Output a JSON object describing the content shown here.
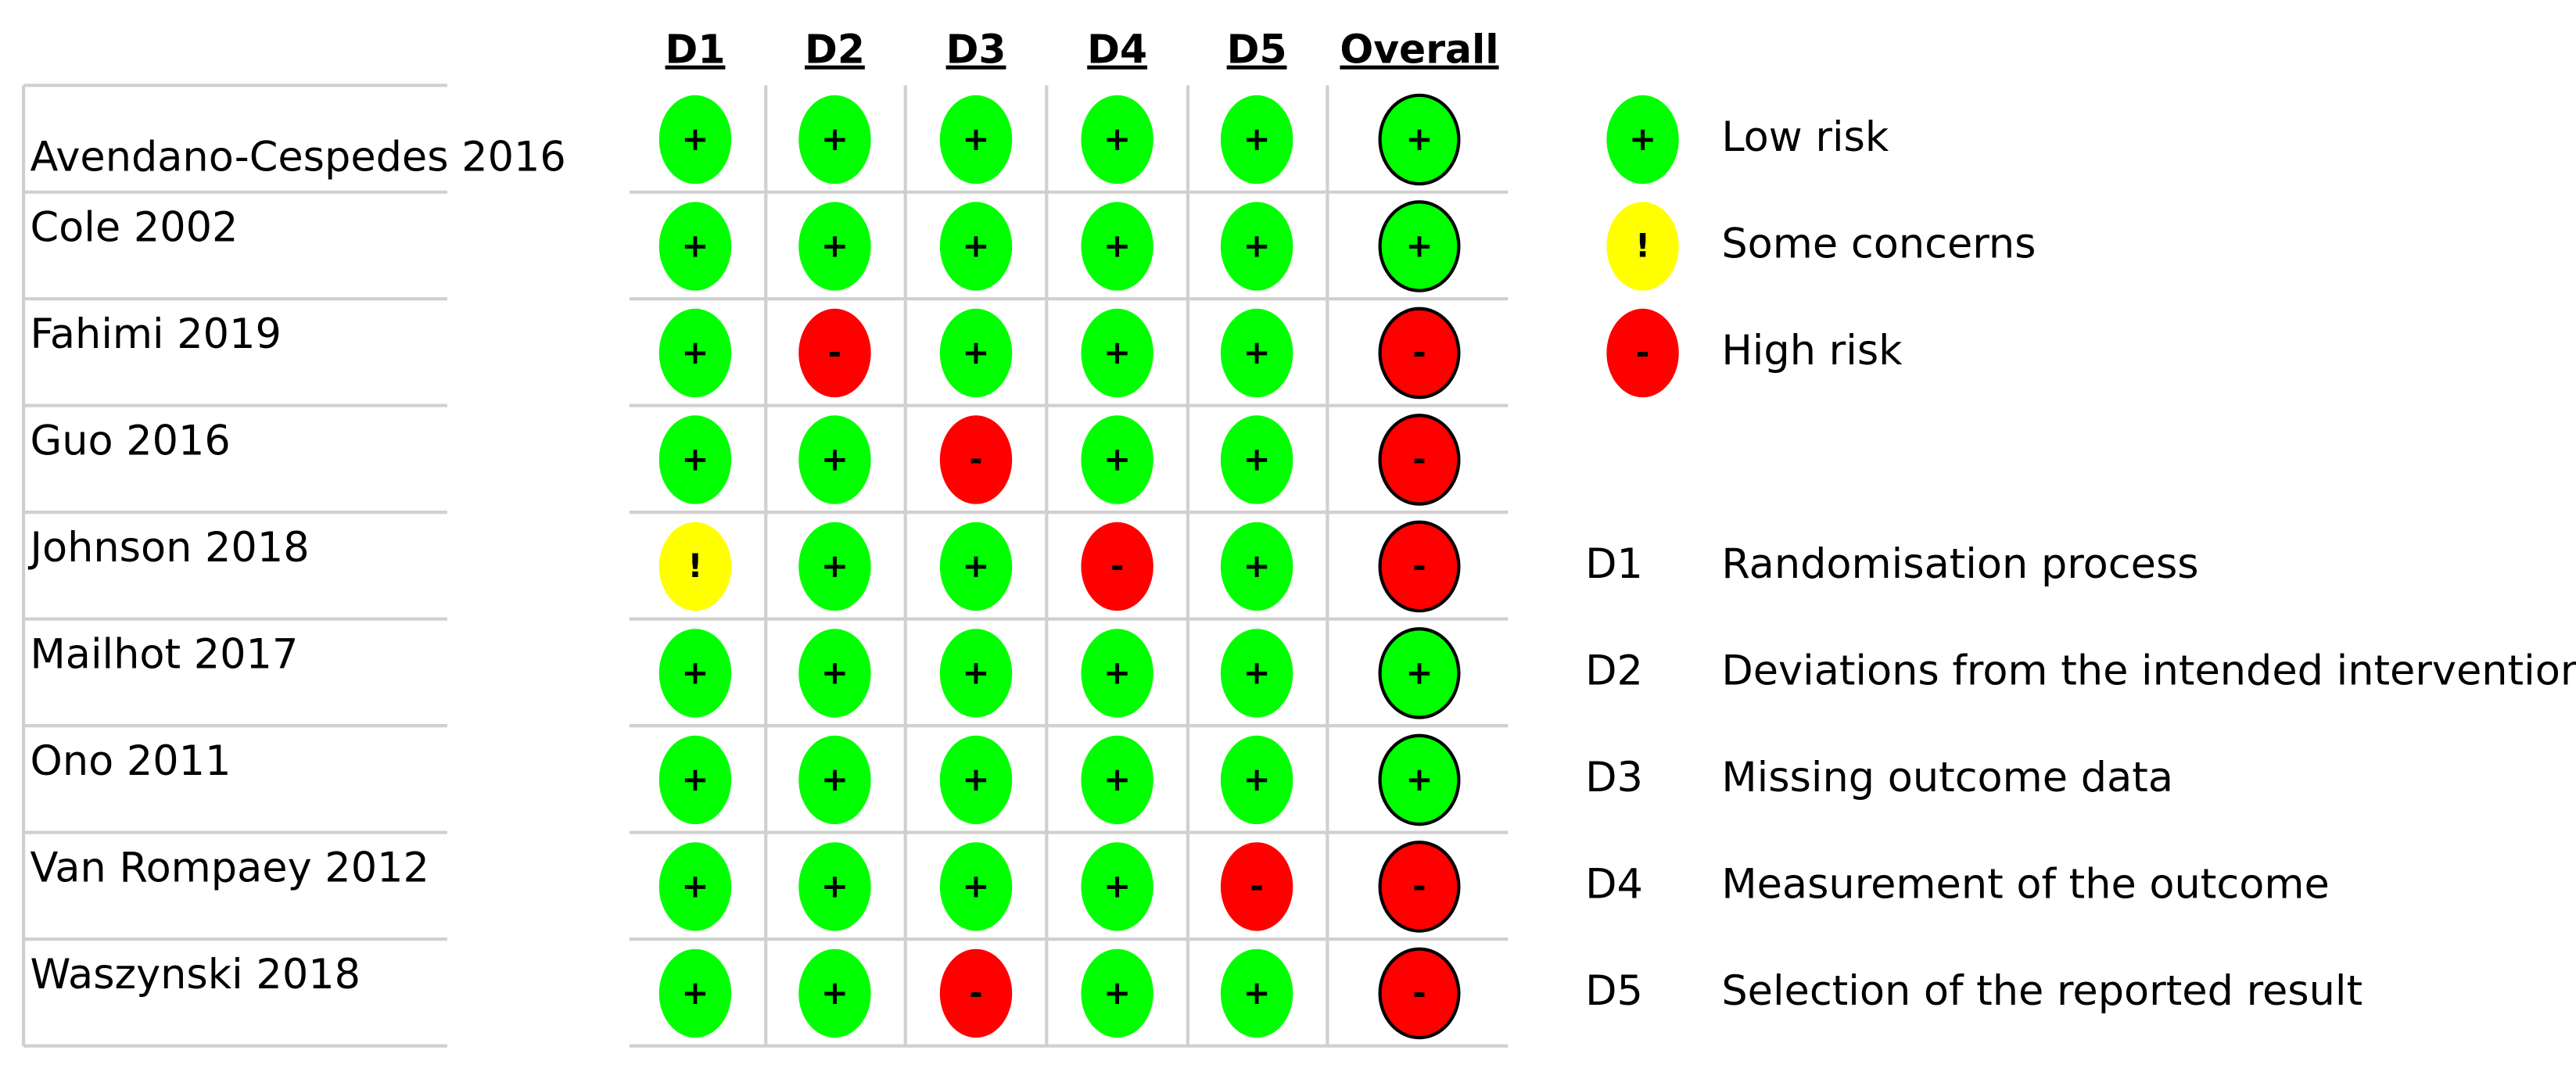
{
  "columns": [
    "D1",
    "D2",
    "D3",
    "D4",
    "D5",
    "Overall"
  ],
  "rows": [
    {
      "study": "Avendano-Cespedes 2016",
      "judgments": [
        "+",
        "+",
        "+",
        "+",
        "+",
        "+"
      ]
    },
    {
      "study": "Cole 2002",
      "judgments": [
        "+",
        "+",
        "+",
        "+",
        "+",
        "+"
      ]
    },
    {
      "study": "Fahimi 2019",
      "judgments": [
        "+",
        "-",
        "+",
        "+",
        "+",
        "-"
      ]
    },
    {
      "study": "Guo 2016",
      "judgments": [
        "+",
        "+",
        "-",
        "+",
        "+",
        "-"
      ]
    },
    {
      "study": "Johnson 2018",
      "judgments": [
        "!",
        "+",
        "+",
        "-",
        "+",
        "-"
      ]
    },
    {
      "study": "Mailhot 2017",
      "judgments": [
        "+",
        "+",
        "+",
        "+",
        "+",
        "+"
      ]
    },
    {
      "study": "Ono 2011",
      "judgments": [
        "+",
        "+",
        "+",
        "+",
        "+",
        "+"
      ]
    },
    {
      "study": "Van Rompaey 2012",
      "judgments": [
        "+",
        "+",
        "+",
        "+",
        "-",
        "-"
      ]
    },
    {
      "study": "Waszynski 2018",
      "judgments": [
        "+",
        "+",
        "-",
        "+",
        "+",
        "-"
      ]
    }
  ],
  "legend": {
    "judgments": [
      {
        "symbol": "+",
        "label": "Low risk",
        "color": "#00ff00"
      },
      {
        "symbol": "!",
        "label": "Some concerns",
        "color": "#ffff00"
      },
      {
        "symbol": "-",
        "label": "High risk",
        "color": "#ff0000"
      }
    ],
    "domains": [
      {
        "code": "D1",
        "description": "Randomisation process"
      },
      {
        "code": "D2",
        "description": "Deviations from the intended intervention"
      },
      {
        "code": "D3",
        "description": "Missing outcome data"
      },
      {
        "code": "D4",
        "description": "Measurement of the outcome"
      },
      {
        "code": "D5",
        "description": "Selection of the reported result"
      }
    ]
  }
}
